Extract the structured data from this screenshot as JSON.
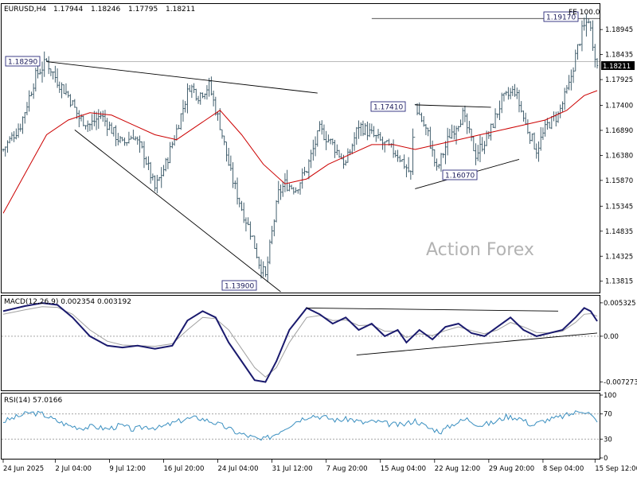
{
  "chart_data": [
    {
      "type": "candlestick",
      "title": "EURUSD,H4",
      "ohlc_header": {
        "open": "1.17944",
        "high": "1.18246",
        "low": "1.17795",
        "close": "1.18211"
      },
      "current_price": "1.18211",
      "watermark": "Action Forex",
      "fibo_label": "FE 100.0",
      "ylim": [
        1.136,
        1.1945
      ],
      "y_ticks": [
        "1.18945",
        "1.18435",
        "1.17925",
        "1.17400",
        "1.16890",
        "1.16380",
        "1.15870",
        "1.15345",
        "1.14835",
        "1.14325",
        "1.13815"
      ],
      "x_ticks": [
        "24 Jun 2025",
        "2 Jul 04:00",
        "9 Jul 12:00",
        "16 Jul 20:00",
        "24 Jul 04:00",
        "31 Jul 12:00",
        "7 Aug 20:00",
        "15 Aug 04:00",
        "22 Aug 12:00",
        "29 Aug 20:00",
        "8 Sep 04:00",
        "15 Sep 12:00"
      ],
      "annotations": [
        {
          "label": "1.18290",
          "value": 1.1829
        },
        {
          "label": "1.13900",
          "value": 1.139
        },
        {
          "label": "1.17410",
          "value": 1.1741
        },
        {
          "label": "1.16070",
          "value": 1.1607
        },
        {
          "label": "1.19170",
          "value": 1.1917
        }
      ],
      "price_path": [
        [
          0,
          1.165
        ],
        [
          8,
          1.17
        ],
        [
          15,
          1.18
        ],
        [
          20,
          1.1829
        ],
        [
          25,
          1.179
        ],
        [
          30,
          1.176
        ],
        [
          35,
          1.1715
        ],
        [
          40,
          1.17
        ],
        [
          45,
          1.172
        ],
        [
          50,
          1.169
        ],
        [
          55,
          1.166
        ],
        [
          60,
          1.168
        ],
        [
          65,
          1.164
        ],
        [
          70,
          1.157
        ],
        [
          75,
          1.162
        ],
        [
          80,
          1.169
        ],
        [
          86,
          1.178
        ],
        [
          90,
          1.176
        ],
        [
          95,
          1.178
        ],
        [
          100,
          1.17
        ],
        [
          105,
          1.16
        ],
        [
          110,
          1.153
        ],
        [
          115,
          1.147
        ],
        [
          118,
          1.142
        ],
        [
          121,
          1.139
        ],
        [
          124,
          1.148
        ],
        [
          127,
          1.156
        ],
        [
          130,
          1.158
        ],
        [
          135,
          1.157
        ],
        [
          140,
          1.161
        ],
        [
          146,
          1.169
        ],
        [
          152,
          1.166
        ],
        [
          158,
          1.162
        ],
        [
          164,
          1.17
        ],
        [
          170,
          1.168
        ],
        [
          176,
          1.166
        ],
        [
          182,
          1.164
        ],
        [
          188,
          1.16
        ],
        [
          190,
          1.1741
        ],
        [
          196,
          1.168
        ],
        [
          200,
          1.1607
        ],
        [
          206,
          1.168
        ],
        [
          212,
          1.172
        ],
        [
          218,
          1.164
        ],
        [
          224,
          1.168
        ],
        [
          230,
          1.175
        ],
        [
          236,
          1.177
        ],
        [
          241,
          1.17
        ],
        [
          246,
          1.165
        ],
        [
          251,
          1.17
        ],
        [
          256,
          1.172
        ],
        [
          261,
          1.178
        ],
        [
          264,
          1.184
        ],
        [
          267,
          1.189
        ],
        [
          270,
          1.1917
        ],
        [
          274,
          1.1821
        ]
      ],
      "ma_path": [
        [
          0,
          1.152
        ],
        [
          10,
          1.16
        ],
        [
          20,
          1.168
        ],
        [
          30,
          1.171
        ],
        [
          40,
          1.1725
        ],
        [
          50,
          1.172
        ],
        [
          60,
          1.17
        ],
        [
          70,
          1.168
        ],
        [
          80,
          1.167
        ],
        [
          90,
          1.17
        ],
        [
          100,
          1.173
        ],
        [
          110,
          1.168
        ],
        [
          120,
          1.162
        ],
        [
          130,
          1.158
        ],
        [
          140,
          1.159
        ],
        [
          150,
          1.162
        ],
        [
          160,
          1.164
        ],
        [
          170,
          1.166
        ],
        [
          180,
          1.166
        ],
        [
          190,
          1.165
        ],
        [
          200,
          1.166
        ],
        [
          210,
          1.167
        ],
        [
          220,
          1.168
        ],
        [
          230,
          1.169
        ],
        [
          240,
          1.17
        ],
        [
          250,
          1.171
        ],
        [
          260,
          1.173
        ],
        [
          268,
          1.176
        ],
        [
          274,
          1.177
        ]
      ],
      "trendlines": [
        {
          "from": [
            20,
            1.1829
          ],
          "to": [
            145,
            1.1765
          ]
        },
        {
          "from": [
            33,
            1.169
          ],
          "to": [
            128,
            1.136
          ]
        },
        {
          "from": [
            190,
            1.1741
          ],
          "to": [
            225,
            1.1736
          ]
        },
        {
          "from": [
            190,
            1.157
          ],
          "to": [
            238,
            1.163
          ]
        }
      ]
    },
    {
      "type": "line",
      "name": "MACD(12,26,9) 0.002354 0.003192",
      "ylim": [
        -0.0085,
        0.0062
      ],
      "y_ticks": [
        "0.005325",
        "0.00",
        "-0.007273"
      ],
      "zero_line": 0.0,
      "macd_path": [
        [
          0,
          0.004
        ],
        [
          10,
          0.0048
        ],
        [
          18,
          0.0053
        ],
        [
          25,
          0.005
        ],
        [
          32,
          0.003
        ],
        [
          40,
          0.0
        ],
        [
          48,
          -0.0015
        ],
        [
          55,
          -0.0018
        ],
        [
          62,
          -0.0015
        ],
        [
          70,
          -0.002
        ],
        [
          78,
          -0.0015
        ],
        [
          85,
          0.0025
        ],
        [
          92,
          0.004
        ],
        [
          98,
          0.003
        ],
        [
          104,
          -0.001
        ],
        [
          110,
          -0.004
        ],
        [
          116,
          -0.007
        ],
        [
          121,
          -0.0073
        ],
        [
          126,
          -0.004
        ],
        [
          132,
          0.001
        ],
        [
          140,
          0.0045
        ],
        [
          146,
          0.0035
        ],
        [
          152,
          0.002
        ],
        [
          158,
          0.003
        ],
        [
          164,
          0.001
        ],
        [
          170,
          0.002
        ],
        [
          176,
          0.0
        ],
        [
          182,
          0.001
        ],
        [
          186,
          -0.001
        ],
        [
          192,
          0.001
        ],
        [
          198,
          -0.0005
        ],
        [
          204,
          0.0015
        ],
        [
          210,
          0.002
        ],
        [
          216,
          0.0005
        ],
        [
          222,
          0.0
        ],
        [
          228,
          0.0015
        ],
        [
          234,
          0.003
        ],
        [
          240,
          0.001
        ],
        [
          246,
          0.0
        ],
        [
          252,
          0.0005
        ],
        [
          258,
          0.001
        ],
        [
          264,
          0.003
        ],
        [
          268,
          0.0045
        ],
        [
          271,
          0.004
        ],
        [
          274,
          0.0024
        ]
      ],
      "signal_path": [
        [
          0,
          0.0035
        ],
        [
          10,
          0.0042
        ],
        [
          18,
          0.0047
        ],
        [
          25,
          0.0046
        ],
        [
          32,
          0.0035
        ],
        [
          40,
          0.001
        ],
        [
          48,
          -0.0008
        ],
        [
          55,
          -0.0014
        ],
        [
          62,
          -0.0015
        ],
        [
          70,
          -0.0016
        ],
        [
          78,
          -0.0012
        ],
        [
          85,
          0.001
        ],
        [
          92,
          0.003
        ],
        [
          98,
          0.0028
        ],
        [
          104,
          0.001
        ],
        [
          110,
          -0.002
        ],
        [
          116,
          -0.005
        ],
        [
          121,
          -0.0065
        ],
        [
          126,
          -0.005
        ],
        [
          132,
          -0.001
        ],
        [
          140,
          0.003
        ],
        [
          146,
          0.0033
        ],
        [
          152,
          0.0025
        ],
        [
          158,
          0.0026
        ],
        [
          164,
          0.0017
        ],
        [
          170,
          0.0018
        ],
        [
          176,
          0.0008
        ],
        [
          182,
          0.0008
        ],
        [
          186,
          -0.0002
        ],
        [
          192,
          0.0004
        ],
        [
          198,
          0.0001
        ],
        [
          204,
          0.0009
        ],
        [
          210,
          0.0015
        ],
        [
          216,
          0.0009
        ],
        [
          222,
          0.0004
        ],
        [
          228,
          0.001
        ],
        [
          234,
          0.0022
        ],
        [
          240,
          0.0015
        ],
        [
          246,
          0.0006
        ],
        [
          252,
          0.0005
        ],
        [
          258,
          0.0008
        ],
        [
          264,
          0.0022
        ],
        [
          268,
          0.0035
        ],
        [
          271,
          0.0036
        ],
        [
          274,
          0.0032
        ]
      ],
      "trendlines": [
        {
          "from": [
            140,
            0.0045
          ],
          "to": [
            256,
            0.004
          ]
        },
        {
          "from": [
            163,
            -0.003
          ],
          "to": [
            274,
            0.0005
          ]
        }
      ]
    },
    {
      "type": "line",
      "name": "RSI(14) 57.0166",
      "ylim": [
        0,
        100
      ],
      "y_ticks": [
        "100",
        "70",
        "30",
        "0"
      ],
      "levels": [
        70,
        30
      ],
      "rsi_path": [
        [
          0,
          58
        ],
        [
          6,
          65
        ],
        [
          12,
          72
        ],
        [
          18,
          70
        ],
        [
          24,
          60
        ],
        [
          30,
          52
        ],
        [
          36,
          48
        ],
        [
          42,
          50
        ],
        [
          48,
          46
        ],
        [
          54,
          52
        ],
        [
          60,
          45
        ],
        [
          66,
          50
        ],
        [
          72,
          48
        ],
        [
          78,
          55
        ],
        [
          84,
          62
        ],
        [
          90,
          64
        ],
        [
          96,
          58
        ],
        [
          102,
          50
        ],
        [
          108,
          40
        ],
        [
          114,
          34
        ],
        [
          119,
          28
        ],
        [
          124,
          35
        ],
        [
          130,
          48
        ],
        [
          136,
          60
        ],
        [
          142,
          68
        ],
        [
          148,
          65
        ],
        [
          154,
          60
        ],
        [
          160,
          62
        ],
        [
          166,
          56
        ],
        [
          172,
          58
        ],
        [
          178,
          54
        ],
        [
          184,
          52
        ],
        [
          190,
          60
        ],
        [
          196,
          48
        ],
        [
          202,
          42
        ],
        [
          208,
          55
        ],
        [
          214,
          62
        ],
        [
          220,
          52
        ],
        [
          226,
          56
        ],
        [
          232,
          66
        ],
        [
          238,
          64
        ],
        [
          244,
          52
        ],
        [
          250,
          60
        ],
        [
          256,
          64
        ],
        [
          262,
          70
        ],
        [
          267,
          76
        ],
        [
          270,
          72
        ],
        [
          274,
          57
        ]
      ]
    }
  ]
}
